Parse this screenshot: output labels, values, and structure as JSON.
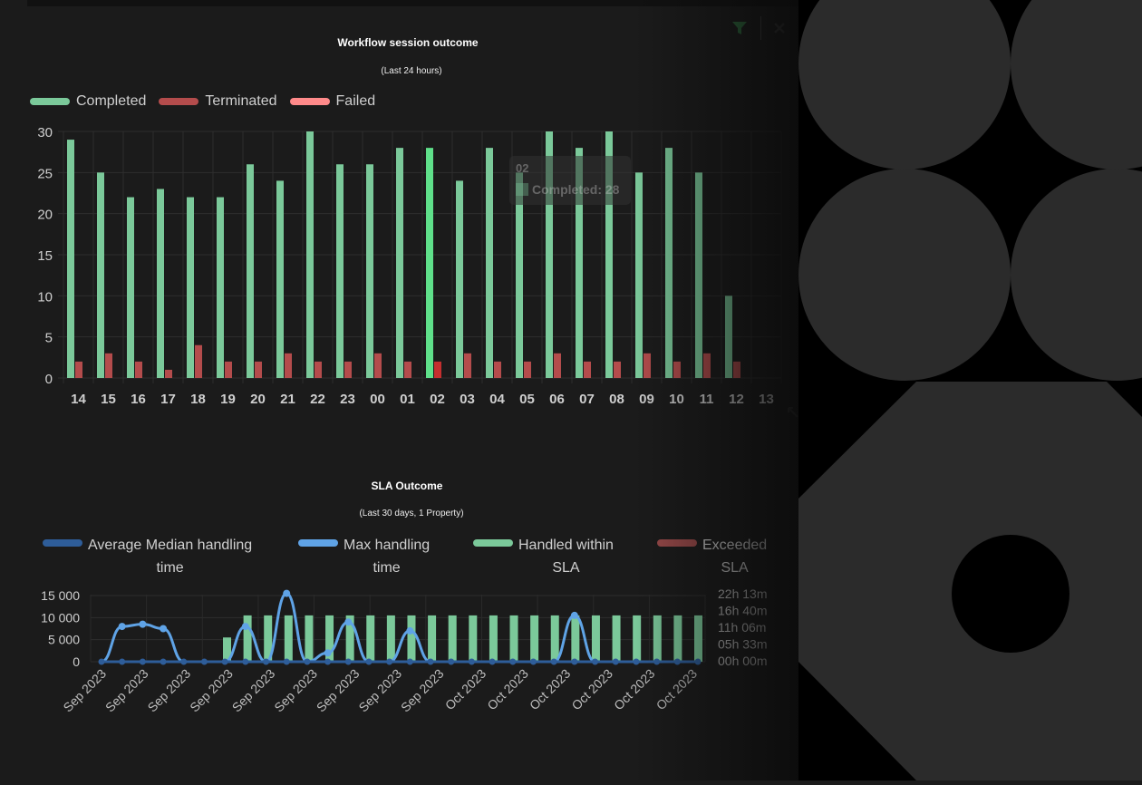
{
  "toolbar": {
    "filter_icon": "filter-icon",
    "close_icon": "close-icon",
    "resize_icon": "resize-icon"
  },
  "colors": {
    "completed": "#7bc99a",
    "terminated": "#b44c4c",
    "failed": "#ff8a8a",
    "avg_median": "#2e5d99",
    "max_handling": "#5fa3e6",
    "handled": "#7bc99a",
    "exceeded": "#9a4a4a"
  },
  "chart1": {
    "title": "Workflow session outcome",
    "subtitle": "(Last 24 hours)",
    "legend": [
      "Completed",
      "Terminated",
      "Failed"
    ],
    "tooltip": {
      "title": "02",
      "label": "Completed: 28"
    }
  },
  "chart2": {
    "title": "SLA Outcome",
    "subtitle": "(Last 30 days, 1 Property)",
    "legend": [
      {
        "line1": "Average Median handling",
        "line2": "time"
      },
      {
        "line1": "Max handling",
        "line2": "time"
      },
      {
        "line1": "Handled within",
        "line2": "SLA"
      },
      {
        "line1": "Exceeded",
        "line2": "SLA"
      }
    ]
  },
  "chart_data": [
    {
      "type": "bar",
      "title": "Workflow session outcome",
      "subtitle": "(Last 24 hours)",
      "categories": [
        "14",
        "15",
        "16",
        "17",
        "18",
        "19",
        "20",
        "21",
        "22",
        "23",
        "00",
        "01",
        "02",
        "03",
        "04",
        "05",
        "06",
        "07",
        "08",
        "09",
        "10",
        "11",
        "12",
        "13"
      ],
      "series": [
        {
          "name": "Completed",
          "values": [
            29,
            25,
            22,
            23,
            22,
            22,
            26,
            24,
            30,
            26,
            26,
            28,
            28,
            24,
            28,
            25,
            30,
            28,
            30,
            25,
            28,
            25,
            10,
            0
          ]
        },
        {
          "name": "Terminated",
          "values": [
            2,
            3,
            2,
            1,
            4,
            2,
            2,
            3,
            2,
            2,
            3,
            2,
            2,
            3,
            2,
            2,
            3,
            2,
            2,
            3,
            2,
            3,
            2,
            0
          ]
        },
        {
          "name": "Failed",
          "values": [
            0,
            0,
            0,
            0,
            0,
            0,
            0,
            0,
            0,
            0,
            0,
            0,
            0,
            0,
            0,
            0,
            0,
            0,
            0,
            0,
            0,
            0,
            0,
            0
          ]
        }
      ],
      "yticks": [
        "0",
        "5",
        "10",
        "15",
        "20",
        "25",
        "30"
      ],
      "ylim": [
        0,
        30
      ],
      "grid": true,
      "legend_position": "top-left"
    },
    {
      "type": "bar",
      "title": "SLA Outcome",
      "subtitle": "(Last 30 days, 1 Property)",
      "categories": [
        "Sep 2023",
        "Sep 2023",
        "Sep 2023",
        "Sep 2023",
        "Sep 2023",
        "Sep 2023",
        "Sep 2023",
        "Sep 2023",
        "Sep 2023",
        "Sep 2023",
        "Sep 2023",
        "Sep 2023",
        "Sep 2023",
        "Sep 2023",
        "Sep 2023",
        "Sep 2023",
        "Sep 2023",
        "Sep 2023",
        "Sep 2023",
        "Oct 2023",
        "Oct 2023",
        "Oct 2023",
        "Oct 2023",
        "Oct 2023",
        "Oct 2023",
        "Oct 2023",
        "Oct 2023",
        "Oct 2023",
        "Oct 2023",
        "Oct 2023"
      ],
      "series": [
        {
          "name": "Handled within SLA",
          "values": [
            0,
            0,
            0,
            0,
            0,
            0,
            5500,
            10500,
            10500,
            10500,
            10500,
            10500,
            10500,
            10500,
            10500,
            10500,
            10500,
            10500,
            10500,
            10500,
            10500,
            10500,
            10500,
            10500,
            10500,
            10500,
            10500,
            10500,
            10500,
            10500
          ]
        },
        {
          "name": "Exceeded SLA",
          "values": [
            0,
            0,
            0,
            0,
            0,
            0,
            0,
            0,
            0,
            0,
            0,
            0,
            0,
            0,
            0,
            0,
            0,
            0,
            0,
            0,
            0,
            0,
            0,
            0,
            0,
            0,
            0,
            0,
            0,
            0
          ]
        },
        {
          "name": "Average Median handling time",
          "values": [
            0,
            0,
            0,
            0,
            0,
            0,
            0,
            0,
            0,
            0,
            0,
            0,
            0,
            0,
            0,
            0,
            0,
            0,
            0,
            0,
            0,
            0,
            0,
            0,
            0,
            0,
            0,
            0,
            0,
            0
          ]
        },
        {
          "name": "Max handling time",
          "values": [
            0,
            8000,
            8500,
            7500,
            0,
            0,
            0,
            8000,
            0,
            15500,
            0,
            2000,
            9000,
            0,
            0,
            7000,
            0,
            0,
            0,
            0,
            0,
            0,
            0,
            10500,
            0,
            0,
            0,
            0,
            0,
            0
          ]
        }
      ],
      "xtick_labels": [
        "Sep 2023",
        "Sep 2023",
        "Sep 2023",
        "Sep 2023",
        "Sep 2023",
        "Sep 2023",
        "Sep 2023",
        "Sep 2023",
        "Sep 2023",
        "Oct 2023",
        "Oct 2023",
        "Oct 2023",
        "Oct 2023",
        "Oct 2023",
        "Oct 2023"
      ],
      "yticks_left": [
        "0",
        "5 000",
        "10 000",
        "15 000"
      ],
      "yticks_right": [
        "00h 00m",
        "05h 33m",
        "11h 06m",
        "16h 40m",
        "22h 13m"
      ],
      "ylim": [
        0,
        15000
      ],
      "grid": true,
      "legend_position": "top"
    }
  ]
}
